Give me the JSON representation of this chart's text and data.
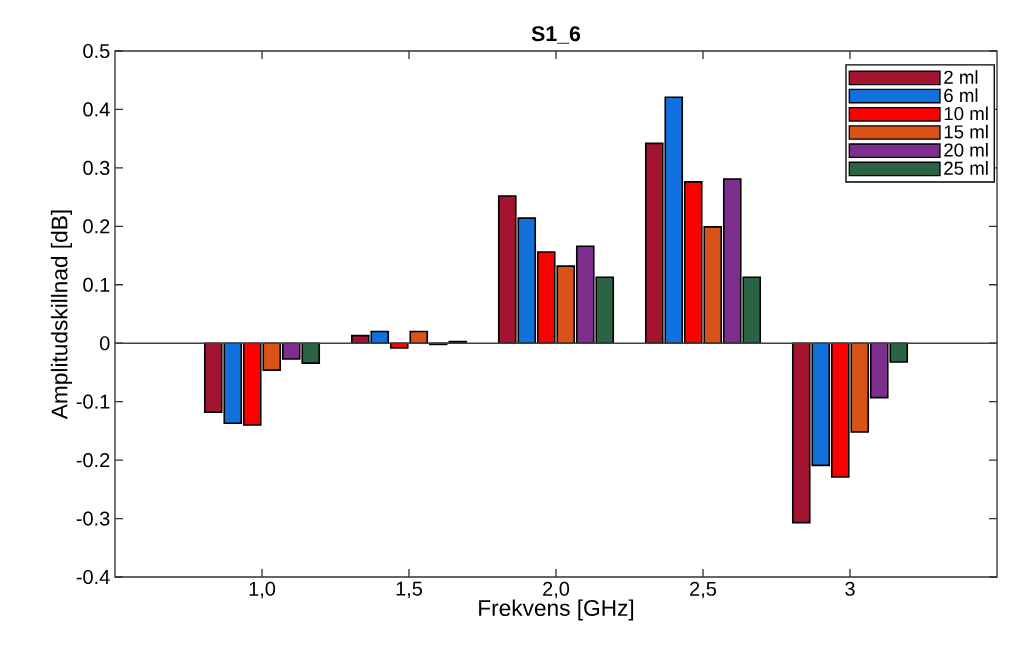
{
  "chart_data": {
    "type": "bar",
    "title": "S1_6",
    "xlabel": "Frekvens [GHz]",
    "ylabel": "Amplitudskillnad [dB]",
    "categories": [
      "1,0",
      "1,5",
      "2,0",
      "2,5",
      "3"
    ],
    "series": [
      {
        "name": "2 ml",
        "color": "#a2142f",
        "values": [
          -0.118,
          0.013,
          0.252,
          0.342,
          -0.307
        ]
      },
      {
        "name": "6 ml",
        "color": "#1071dc",
        "values": [
          -0.137,
          0.02,
          0.214,
          0.421,
          -0.209
        ]
      },
      {
        "name": "10 ml",
        "color": "#ff0000",
        "values": [
          -0.14,
          -0.008,
          0.156,
          0.276,
          -0.229
        ]
      },
      {
        "name": "15 ml",
        "color": "#d95319",
        "values": [
          -0.046,
          0.02,
          0.132,
          0.199,
          -0.152
        ]
      },
      {
        "name": "20 ml",
        "color": "#7e2f8e",
        "values": [
          -0.027,
          -0.002,
          0.166,
          0.281,
          -0.093
        ]
      },
      {
        "name": "25 ml",
        "color": "#2a6445",
        "values": [
          -0.034,
          0.003,
          0.113,
          0.113,
          -0.032
        ]
      }
    ],
    "ylim": [
      -0.4,
      0.5
    ],
    "yticks": [
      {
        "value": -0.4,
        "label": "-0.4"
      },
      {
        "value": -0.3,
        "label": "-0.3"
      },
      {
        "value": -0.2,
        "label": "-0.2"
      },
      {
        "value": -0.1,
        "label": "-0.1"
      },
      0,
      {
        "value": 0.1,
        "label": "0.1"
      },
      {
        "value": 0.2,
        "label": "0.2"
      },
      {
        "value": 0.3,
        "label": "0.3"
      },
      {
        "value": 0.4,
        "label": "0.4"
      },
      {
        "value": 0.5,
        "label": "0.5"
      }
    ],
    "legend": "top right"
  }
}
